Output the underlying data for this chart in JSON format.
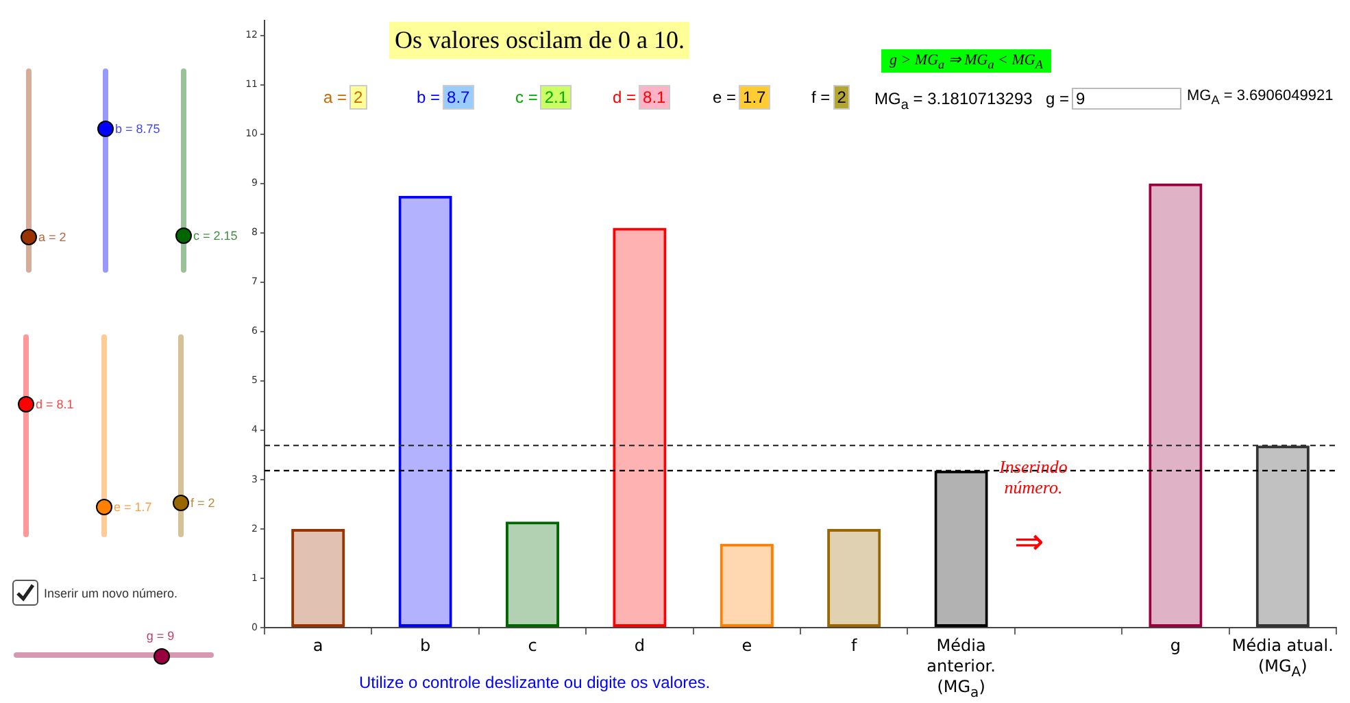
{
  "chart_data": {
    "type": "bar",
    "title": "Os valores oscilam de 0 a 10.",
    "categories": [
      "a",
      "b",
      "c",
      "d",
      "e",
      "f",
      "Média anterior. (MG$_{a}$)",
      null,
      "g",
      "Média atual. (MG$_{A}$)"
    ],
    "series": [
      {
        "colors": [
          "#993300",
          "#0000ff",
          "#006600",
          "#ff0000",
          "#ff7f00",
          "#996600",
          "#000000",
          null,
          "#99003f",
          "#333333"
        ],
        "values": [
          2,
          8.75,
          2.15,
          8.1,
          1.7,
          2,
          3.1810713293,
          null,
          9,
          3.6906049921
        ]
      }
    ],
    "ylim": [
      0,
      12.3
    ],
    "yticks": [
      0,
      1,
      2,
      3,
      4,
      5,
      6,
      7,
      8,
      9,
      10,
      11,
      12
    ],
    "ref_lines": [
      {
        "axis": "y",
        "value": 3.1810713293,
        "line_style": "dashed",
        "color": "#000000"
      },
      {
        "axis": "y",
        "value": 3.6906049921,
        "line_style": "dashed",
        "color": "#333333"
      }
    ],
    "annotations": [
      "a = 2",
      "b = 8.75",
      "c = 2.15",
      "d = 8.1",
      "e = 1.7",
      "f = 2",
      "Inserir um novo número.",
      "g = 9",
      "a = 2",
      "b = 8.7",
      "c = 2.1",
      "d = 8.1",
      "e = 1.7",
      "f = 2",
      "MG$_{a}$ = 3.1810713293",
      "g = 9",
      "MG$_{A}$ = 3.6906049921",
      "g > MG$_{a}$ ⇒ MG$_{a}$ < MG$_{A}$",
      "Inserindo número.",
      "⇒",
      "Utilize o controle deslizante ou digite os valores."
    ]
  }
}
